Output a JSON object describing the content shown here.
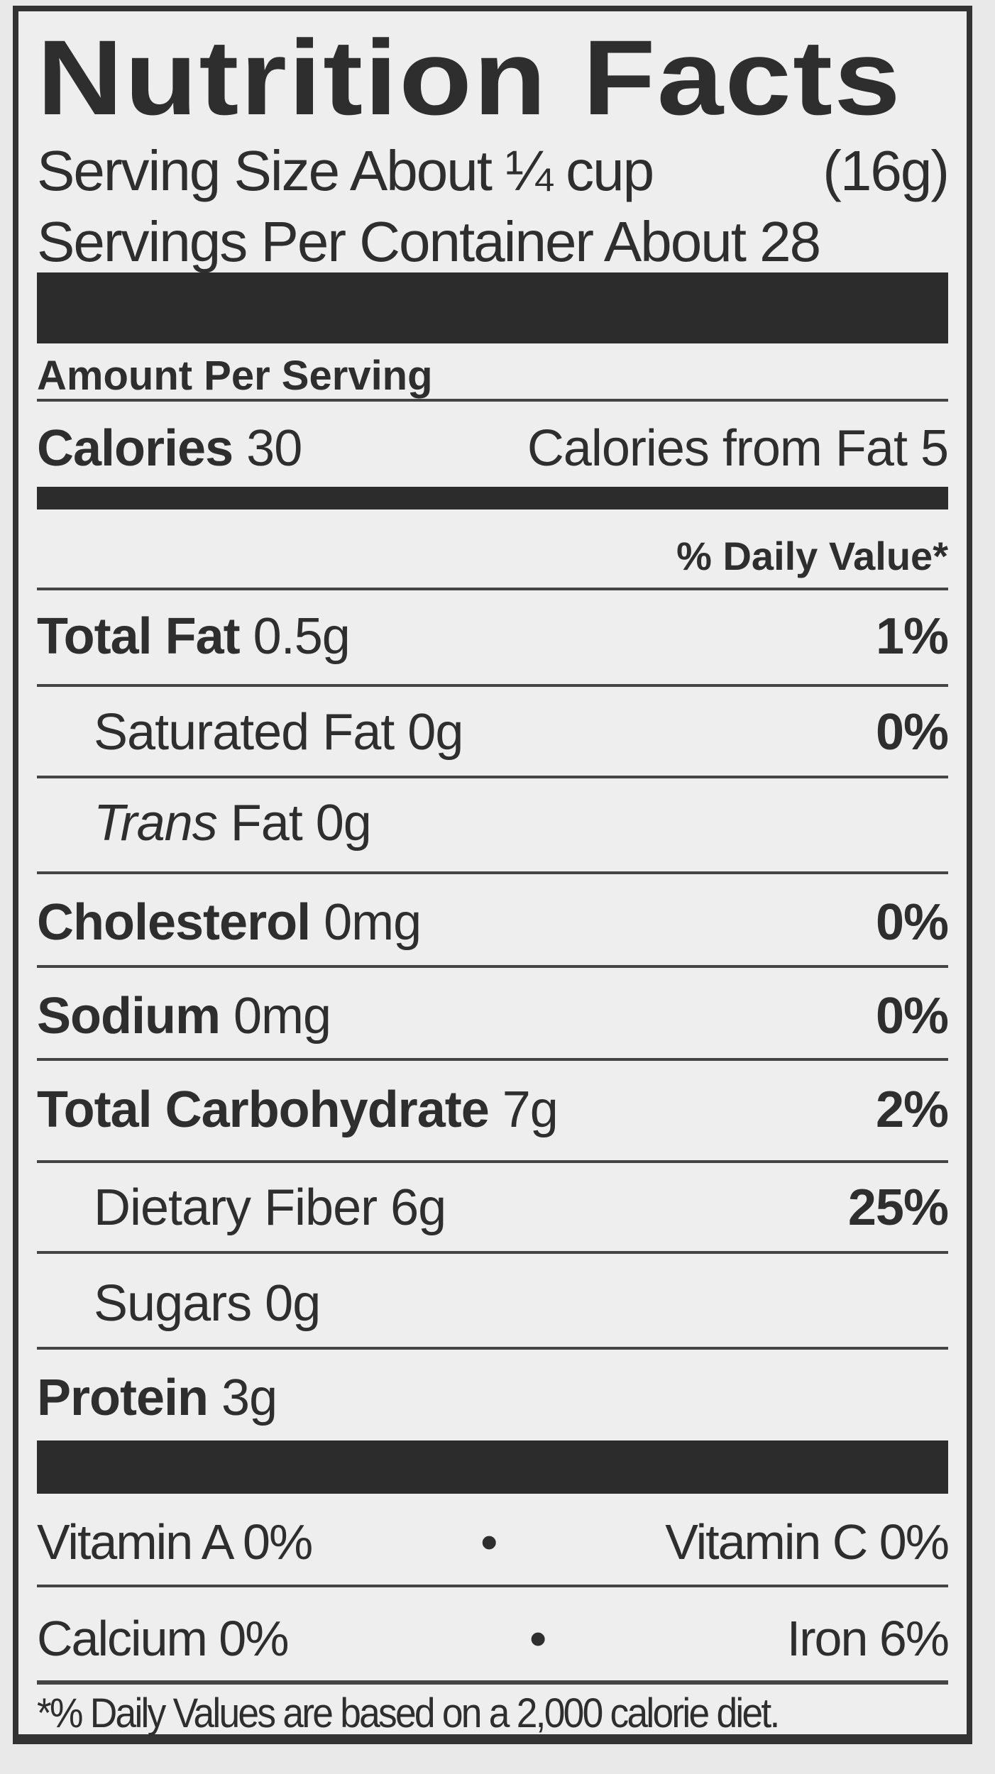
{
  "title": "Nutrition Facts",
  "serving_size": {
    "label": "Serving Size About ¼ cup",
    "grams": "(16g)"
  },
  "servings_per_container": "Servings Per Container About 28",
  "amount_per_serving": "Amount Per Serving",
  "calories": {
    "label": "Calories",
    "value": "30",
    "from_fat": "Calories from Fat 5"
  },
  "daily_value_header": "% Daily Value*",
  "nutrients": [
    {
      "name": "Total Fat",
      "amount": "0.5g",
      "dv": "1%"
    },
    {
      "name": "Saturated Fat",
      "amount": "0g",
      "dv": "0%"
    },
    {
      "name": "Trans",
      "suffix": "Fat 0g",
      "dv": ""
    },
    {
      "name": "Cholesterol",
      "amount": "0mg",
      "dv": "0%"
    },
    {
      "name": "Sodium",
      "amount": "0mg",
      "dv": "0%"
    },
    {
      "name": "Total Carbohydrate",
      "amount": "7g",
      "dv": "2%"
    },
    {
      "name": "Dietary Fiber",
      "amount": "6g",
      "dv": "25%"
    },
    {
      "name": "Sugars",
      "amount": "0g",
      "dv": ""
    },
    {
      "name": "Protein",
      "amount": "3g",
      "dv": ""
    }
  ],
  "vitamins": [
    {
      "left": "Vitamin A 0%",
      "right": "Vitamin C 0%"
    },
    {
      "left": "Calcium 0%",
      "right": "Iron 6%"
    }
  ],
  "bullet": "•",
  "footnote": "*% Daily Values are based on a 2,000 calorie diet."
}
